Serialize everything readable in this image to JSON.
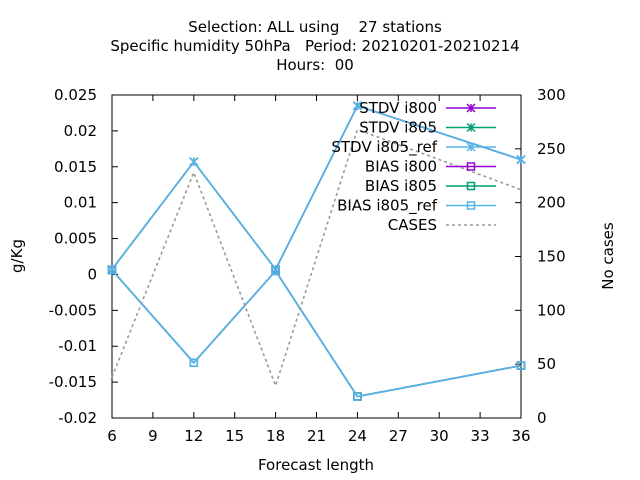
{
  "title_lines": [
    "Selection: ALL using    27 stations",
    "Specific humidity 50hPa   Period: 20210201-20210214",
    "Hours:  00"
  ],
  "chart_data": {
    "type": "line",
    "title": "Selection: ALL using    27 stations / Specific humidity 50hPa   Period: 20210201-20210214 / Hours:  00",
    "xlabel": "Forecast length",
    "ylabel": "g/Kg",
    "y2label": "No cases",
    "x": [
      6,
      12,
      18,
      24,
      36
    ],
    "xticks": [
      "6",
      "9",
      "12",
      "15",
      "18",
      "21",
      "24",
      "27",
      "30",
      "33",
      "36"
    ],
    "xlim": [
      6,
      36
    ],
    "ylim": [
      -0.02,
      0.025
    ],
    "yticks": [
      "0.025",
      "0.02",
      "0.015",
      "0.01",
      "0.005",
      "0",
      "-0.005",
      "-0.01",
      "-0.015",
      "-0.02"
    ],
    "y2lim": [
      0,
      300
    ],
    "y2ticks": [
      "300",
      "250",
      "200",
      "150",
      "100",
      "50",
      "0"
    ],
    "grid": false,
    "legend_position": "top-right",
    "series": [
      {
        "name": "STDV i800",
        "axis": "y",
        "color": "#9400d3",
        "marker": "x",
        "dash": "",
        "values": [
          0.0007,
          0.0157,
          0.0007,
          0.0235,
          0.016
        ]
      },
      {
        "name": "STDV i805",
        "axis": "y",
        "color": "#009e73",
        "marker": "x",
        "dash": "",
        "values": [
          0.0007,
          0.0157,
          0.0007,
          0.0235,
          0.016
        ]
      },
      {
        "name": "STDV i805_ref",
        "axis": "y",
        "color": "#56b4e9",
        "marker": "x",
        "dash": "",
        "values": [
          0.0007,
          0.0157,
          0.0007,
          0.0235,
          0.016
        ]
      },
      {
        "name": "BIAS i800",
        "axis": "y",
        "color": "#9400d3",
        "marker": "square",
        "dash": "",
        "values": [
          0.0006,
          -0.0123,
          0.0005,
          -0.017,
          -0.0127
        ]
      },
      {
        "name": "BIAS i805",
        "axis": "y",
        "color": "#009e73",
        "marker": "square",
        "dash": "",
        "values": [
          0.0006,
          -0.0123,
          0.0005,
          -0.017,
          -0.0127
        ]
      },
      {
        "name": "BIAS i805_ref",
        "axis": "y",
        "color": "#56b4e9",
        "marker": "square",
        "dash": "",
        "values": [
          0.0006,
          -0.0123,
          0.0005,
          -0.017,
          -0.0127
        ]
      },
      {
        "name": "CASES",
        "axis": "y2",
        "color": "#999999",
        "marker": "none",
        "dash": "3,3",
        "values": [
          38,
          228,
          30,
          268,
          212
        ]
      }
    ]
  }
}
